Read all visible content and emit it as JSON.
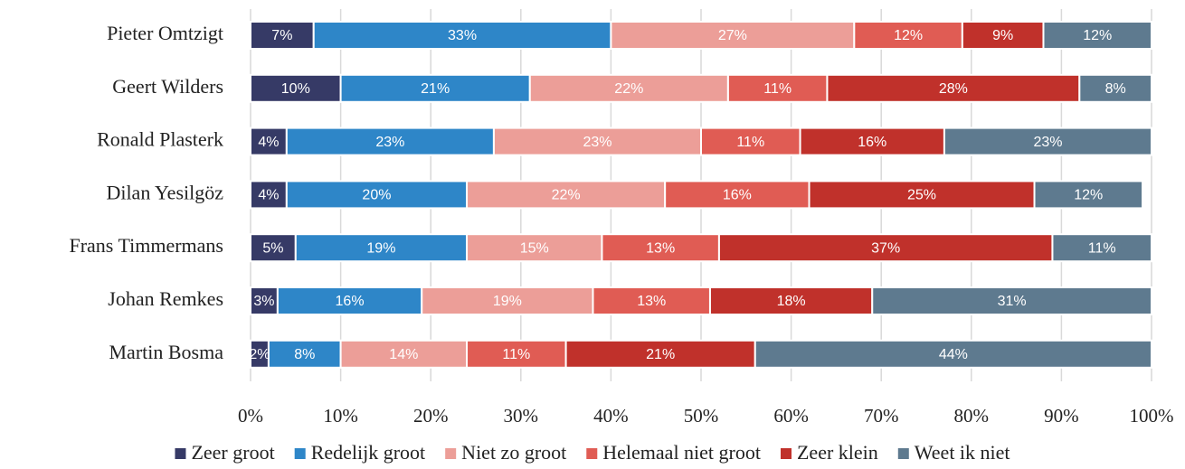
{
  "chart_data": {
    "type": "stacked_barh",
    "categories": [
      "Pieter Omtzigt",
      "Geert Wilders",
      "Ronald Plasterk",
      "Dilan Yesilgöz",
      "Frans Timmermans",
      "Johan Remkes",
      "Martin Bosma"
    ],
    "series": [
      {
        "name": "Zeer groot",
        "color": "#363a66",
        "values": [
          7,
          10,
          4,
          4,
          5,
          3,
          2
        ],
        "value_labels": [
          "7%",
          "10%",
          "4%",
          "4%",
          "5%",
          "3%",
          "2%"
        ]
      },
      {
        "name": "Redelijk groot",
        "color": "#2e86c8",
        "values": [
          33,
          21,
          23,
          20,
          19,
          16,
          8
        ],
        "value_labels": [
          "33%",
          "21%",
          "23%",
          "20%",
          "19%",
          "16%",
          "8%"
        ]
      },
      {
        "name": "Niet zo groot",
        "color": "#ec9e98",
        "values": [
          27,
          22,
          23,
          22,
          15,
          19,
          14
        ],
        "value_labels": [
          "27%",
          "22%",
          "23%",
          "22%",
          "15%",
          "19%",
          "14%"
        ]
      },
      {
        "name": "Helemaal niet groot",
        "color": "#e05c54",
        "values": [
          12,
          11,
          11,
          16,
          13,
          13,
          11
        ],
        "value_labels": [
          "12%",
          "11%",
          "11%",
          "16%",
          "13%",
          "13%",
          "11%"
        ]
      },
      {
        "name": "Zeer klein",
        "color": "#c0312b",
        "values": [
          9,
          28,
          16,
          25,
          37,
          18,
          21
        ],
        "value_labels": [
          "9%",
          "28%",
          "16%",
          "25%",
          "37%",
          "18%",
          "21%"
        ]
      },
      {
        "name": "Weet ik niet",
        "color": "#5e7a8f",
        "values": [
          12,
          8,
          23,
          12,
          11,
          31,
          44
        ],
        "value_labels": [
          "12%",
          "8%",
          "23%",
          "12%",
          "11%",
          "31%",
          "44%"
        ]
      }
    ],
    "xlim": [
      0,
      100
    ],
    "xticks": [
      {
        "value": 0,
        "label": "0%"
      },
      {
        "value": 10,
        "label": "10%"
      },
      {
        "value": 20,
        "label": "20%"
      },
      {
        "value": 30,
        "label": "30%"
      },
      {
        "value": 40,
        "label": "40%"
      },
      {
        "value": 50,
        "label": "50%"
      },
      {
        "value": 60,
        "label": "60%"
      },
      {
        "value": 70,
        "label": "70%"
      },
      {
        "value": 80,
        "label": "80%"
      },
      {
        "value": 90,
        "label": "90%"
      },
      {
        "value": 100,
        "label": "100%"
      }
    ],
    "grid": true,
    "legend": "bottom"
  }
}
